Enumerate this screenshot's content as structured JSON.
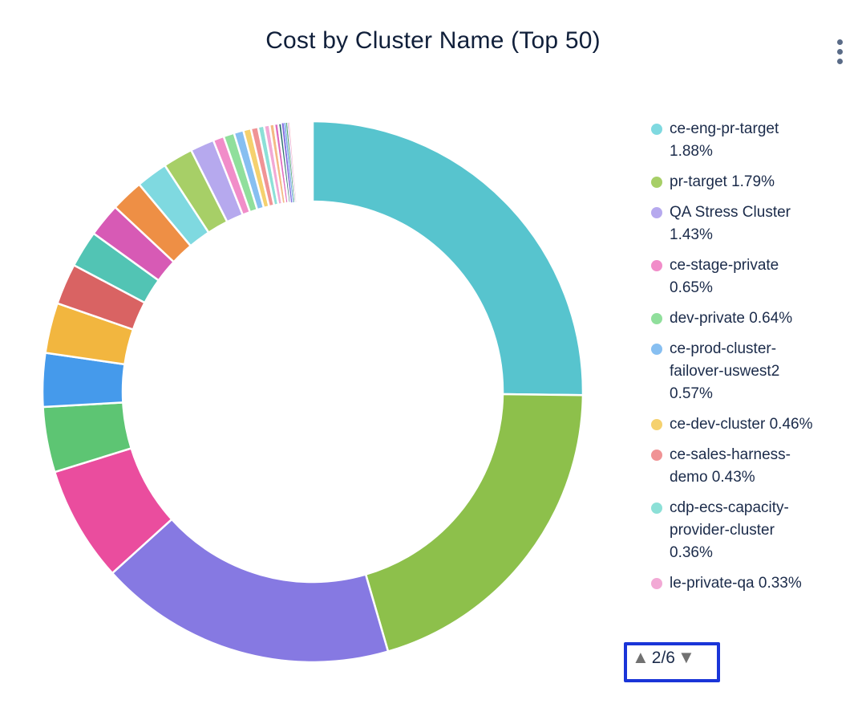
{
  "header": {
    "title": "Cost by Cluster Name (Top 50)"
  },
  "menu": {
    "icon": "kebab-vertical-icon"
  },
  "chart_data": {
    "type": "pie",
    "style": "donut",
    "title": "Cost by Cluster Name (Top 50)",
    "legend_position": "right",
    "legend_page": "2/6",
    "slices": [
      {
        "label": "",
        "value": 25.2,
        "color": "#57C4CE"
      },
      {
        "label": "",
        "value": 20.3,
        "color": "#8DC04B"
      },
      {
        "label": "",
        "value": 17.8,
        "color": "#8679E2"
      },
      {
        "label": "",
        "value": 6.9,
        "color": "#EA4D9E"
      },
      {
        "label": "",
        "value": 3.9,
        "color": "#5DC573"
      },
      {
        "label": "",
        "value": 3.2,
        "color": "#459AEB"
      },
      {
        "label": "",
        "value": 3.0,
        "color": "#F2B63F"
      },
      {
        "label": "",
        "value": 2.45,
        "color": "#D96363"
      },
      {
        "label": "",
        "value": 2.2,
        "color": "#52C4B4"
      },
      {
        "label": "",
        "value": 2.0,
        "color": "#D75AB5"
      },
      {
        "label": "",
        "value": 1.95,
        "color": "#EE8F45"
      },
      {
        "label": "ce-eng-pr-target",
        "value": 1.88,
        "color": "#7FD9E0"
      },
      {
        "label": "pr-target",
        "value": 1.79,
        "color": "#A7CF67"
      },
      {
        "label": "QA Stress Cluster",
        "value": 1.43,
        "color": "#B6A9EE"
      },
      {
        "label": "ce-stage-private",
        "value": 0.65,
        "color": "#F18DC9"
      },
      {
        "label": "dev-private",
        "value": 0.64,
        "color": "#90DF9C"
      },
      {
        "label": "ce-prod-cluster-failover-uswest2",
        "value": 0.57,
        "color": "#87BFF1"
      },
      {
        "label": "ce-dev-cluster",
        "value": 0.46,
        "color": "#F5D16E"
      },
      {
        "label": "ce-sales-harness-demo",
        "value": 0.43,
        "color": "#F09395"
      },
      {
        "label": "cdp-ecs-capacity-provider-cluster",
        "value": 0.36,
        "color": "#8CE0D7"
      },
      {
        "label": "le-private-qa",
        "value": 0.33,
        "color": "#F2A9D5"
      },
      {
        "label": "",
        "value": 0.28,
        "color": "#F4BA85"
      },
      {
        "label": "",
        "value": 0.24,
        "color": "#E06CBF"
      },
      {
        "label": "",
        "value": 0.2,
        "color": "#2A6F6B"
      },
      {
        "label": "",
        "value": 0.14,
        "color": "#8571E0"
      },
      {
        "label": "",
        "value": 0.11,
        "color": "#6FA8E8"
      },
      {
        "label": "",
        "value": 0.09,
        "color": "#57A773"
      },
      {
        "label": "",
        "value": 0.07,
        "color": "#C5B3F0"
      },
      {
        "label": "",
        "value": 0.06,
        "color": "#F4A0B9"
      }
    ],
    "legend_items": [
      {
        "label": "ce-eng-pr-target",
        "percent": "1.88%",
        "color": "#7FD9E0"
      },
      {
        "label": "pr-target",
        "percent": "1.79%",
        "color": "#A7CF67"
      },
      {
        "label": "QA Stress Cluster",
        "percent": "1.43%",
        "color": "#B6A9EE"
      },
      {
        "label": "ce-stage-private",
        "percent": "0.65%",
        "color": "#F18DC9"
      },
      {
        "label": "dev-private",
        "percent": "0.64%",
        "color": "#90DF9C"
      },
      {
        "label": "ce-prod-cluster-failover-uswest2",
        "percent": "0.57%",
        "color": "#87BFF1"
      },
      {
        "label": "ce-dev-cluster",
        "percent": "0.46%",
        "color": "#F5D16E"
      },
      {
        "label": "ce-sales-harness-demo",
        "percent": "0.43%",
        "color": "#F09395"
      },
      {
        "label": "cdp-ecs-capacity-provider-cluster",
        "percent": "0.36%",
        "color": "#8CE0D7"
      },
      {
        "label": "le-private-qa",
        "percent": "0.33%",
        "color": "#F2A9D5"
      }
    ]
  },
  "pager": {
    "page_indicator": "2/6",
    "up_icon": "up-triangle-icon",
    "down_icon": "down-triangle-icon",
    "up_glyph": "▲",
    "down_glyph": "▼"
  },
  "colors": {
    "title_text": "#101F3A",
    "legend_text": "#1B2B4A",
    "pager_border": "#1A35D8",
    "pager_arrow": "#717171",
    "slice_border": "#FFFFFF",
    "menu_icon": "#5A6B87"
  }
}
